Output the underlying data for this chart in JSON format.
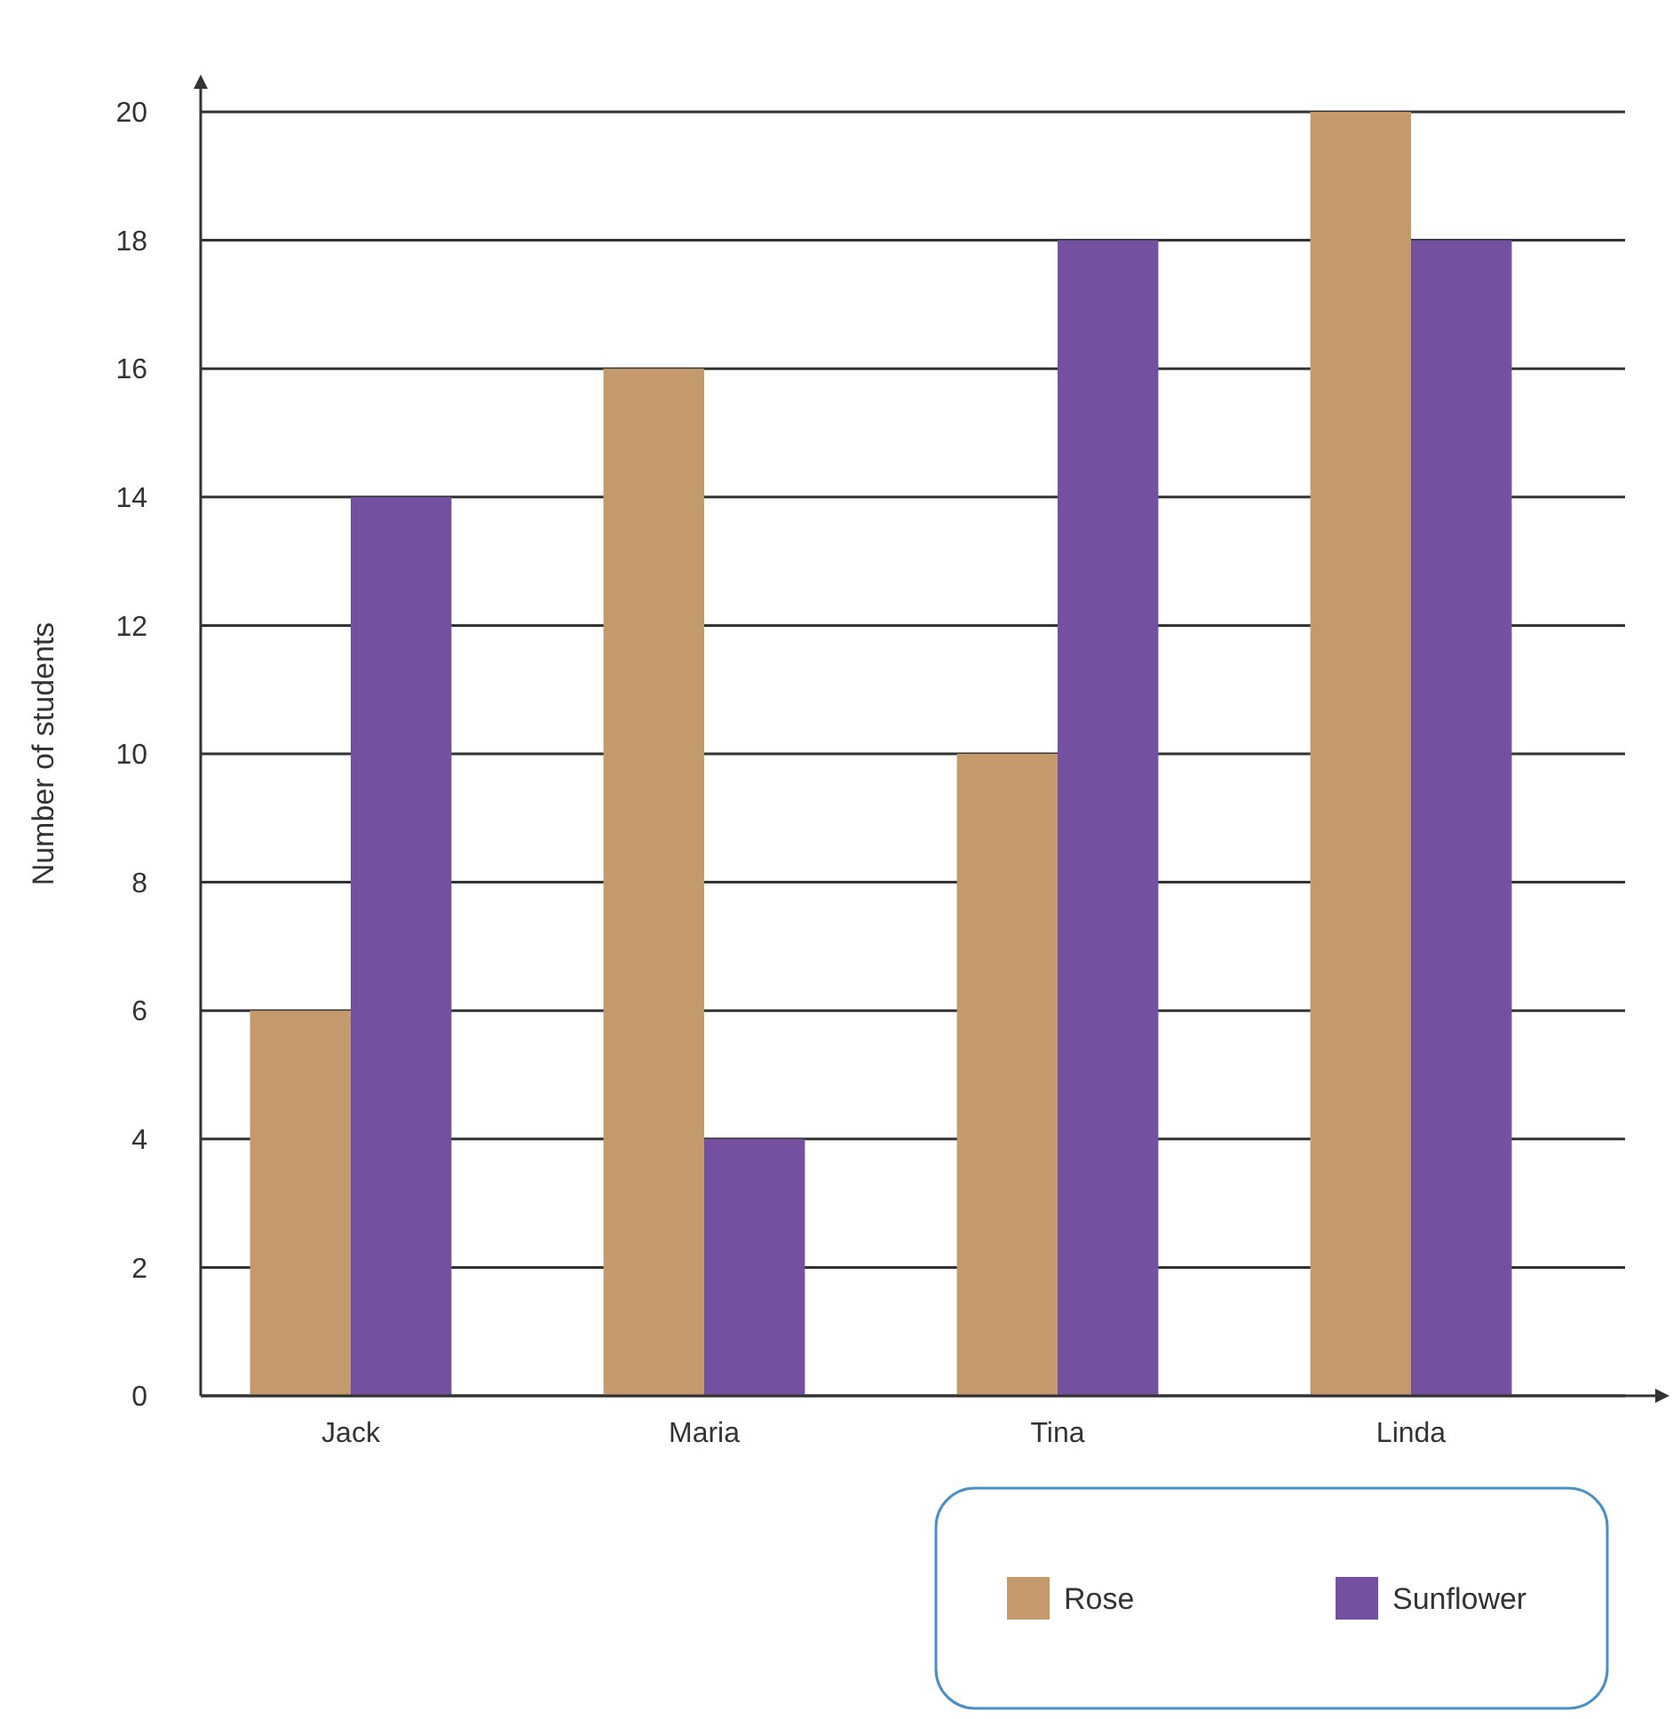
{
  "chart_data": {
    "type": "bar",
    "ylabel": "Number of students",
    "categories": [
      "Jack",
      "Maria",
      "Tina",
      "Linda"
    ],
    "series": [
      {
        "name": "Rose",
        "color": "#c49a6c",
        "values": [
          6,
          16,
          10,
          20
        ]
      },
      {
        "name": "Sunflower",
        "color": "#7451a0",
        "values": [
          14,
          4,
          18,
          18
        ]
      }
    ],
    "ylim": [
      0,
      20
    ],
    "yticks": [
      0,
      2,
      4,
      6,
      8,
      10,
      12,
      14,
      16,
      18,
      20
    ],
    "grid": "y",
    "legend": "bottom right"
  }
}
